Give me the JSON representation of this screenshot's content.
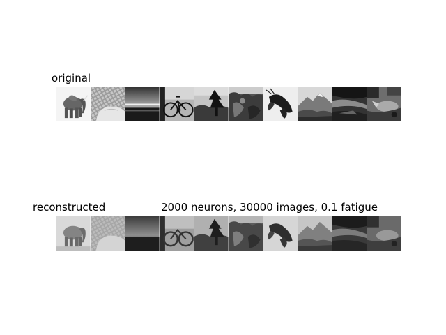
{
  "original": {
    "title": "original",
    "tiles": [
      {
        "icon": "elephant-thumbnail"
      },
      {
        "icon": "keyboard-hand-thumbnail"
      },
      {
        "icon": "sea-horizon-thumbnail"
      },
      {
        "icon": "bicycle-thumbnail"
      },
      {
        "icon": "tree-thumbnail"
      },
      {
        "icon": "rock-foliage-thumbnail"
      },
      {
        "icon": "lobster-thumbnail"
      },
      {
        "icon": "mountain-thumbnail"
      },
      {
        "icon": "dark-terrain-thumbnail"
      },
      {
        "icon": "cluttered-scene-thumbnail"
      }
    ]
  },
  "reconstructed": {
    "title": "reconstructed",
    "subtitle": "2000 neurons, 30000 images, 0.1 fatigue",
    "tiles": [
      {
        "icon": "elephant-thumbnail"
      },
      {
        "icon": "keyboard-hand-thumbnail"
      },
      {
        "icon": "sea-horizon-thumbnail"
      },
      {
        "icon": "bicycle-thumbnail"
      },
      {
        "icon": "tree-thumbnail"
      },
      {
        "icon": "rock-foliage-thumbnail"
      },
      {
        "icon": "lobster-thumbnail"
      },
      {
        "icon": "mountain-thumbnail"
      },
      {
        "icon": "dark-terrain-thumbnail"
      },
      {
        "icon": "cluttered-scene-thumbnail"
      }
    ]
  }
}
